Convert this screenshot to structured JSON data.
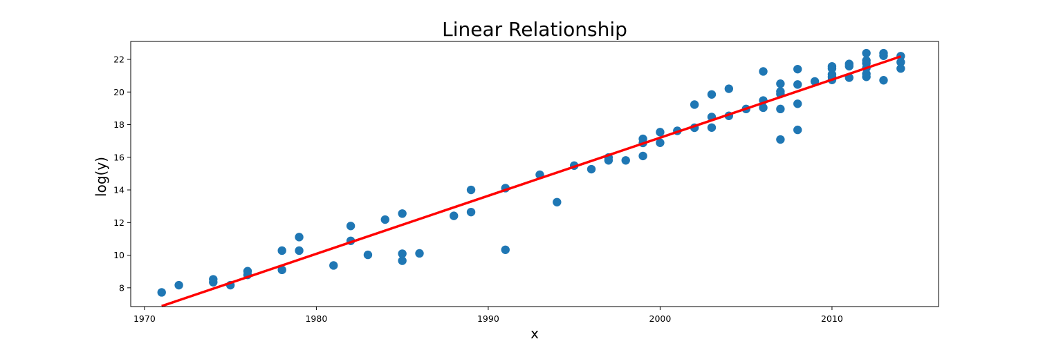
{
  "chart_data": {
    "type": "scatter",
    "title": "Linear Relationship",
    "xlabel": "x",
    "ylabel": "log(y)",
    "xlim": [
      1969.2,
      2016.2
    ],
    "ylim": [
      6.85,
      23.1
    ],
    "xticks": [
      1970,
      1980,
      1990,
      2000,
      2010
    ],
    "yticks": [
      8,
      10,
      12,
      14,
      16,
      18,
      20,
      22
    ],
    "grid": false,
    "colors": {
      "points": "#1f77b4",
      "fit_line": "#ff0000"
    },
    "series": [
      {
        "kind": "scatter",
        "points": [
          [
            1971,
            7.72
          ],
          [
            1972,
            8.16
          ],
          [
            1974,
            8.34
          ],
          [
            1974,
            8.52
          ],
          [
            1975,
            8.16
          ],
          [
            1976,
            8.79
          ],
          [
            1976,
            9.02
          ],
          [
            1978,
            9.1
          ],
          [
            1978,
            10.28
          ],
          [
            1979,
            10.28
          ],
          [
            1979,
            11.11
          ],
          [
            1981,
            9.37
          ],
          [
            1982,
            10.88
          ],
          [
            1982,
            11.79
          ],
          [
            1983,
            10.02
          ],
          [
            1984,
            12.18
          ],
          [
            1985,
            9.66
          ],
          [
            1985,
            10.09
          ],
          [
            1985,
            12.55
          ],
          [
            1986,
            10.11
          ],
          [
            1988,
            12.41
          ],
          [
            1989,
            12.64
          ],
          [
            1989,
            14.0
          ],
          [
            1991,
            10.33
          ],
          [
            1991,
            14.11
          ],
          [
            1993,
            14.93
          ],
          [
            1994,
            13.25
          ],
          [
            1995,
            15.49
          ],
          [
            1996,
            15.27
          ],
          [
            1997,
            15.81
          ],
          [
            1997,
            15.99
          ],
          [
            1998,
            15.81
          ],
          [
            1999,
            16.08
          ],
          [
            1999,
            16.88
          ],
          [
            1999,
            17.13
          ],
          [
            2000,
            16.89
          ],
          [
            2000,
            17.54
          ],
          [
            2001,
            17.62
          ],
          [
            2002,
            17.81
          ],
          [
            2002,
            19.23
          ],
          [
            2003,
            17.82
          ],
          [
            2003,
            18.47
          ],
          [
            2003,
            19.85
          ],
          [
            2004,
            18.54
          ],
          [
            2004,
            20.2
          ],
          [
            2005,
            18.96
          ],
          [
            2006,
            19.04
          ],
          [
            2006,
            19.48
          ],
          [
            2006,
            21.26
          ],
          [
            2007,
            17.09
          ],
          [
            2007,
            18.96
          ],
          [
            2007,
            19.88
          ],
          [
            2007,
            20.03
          ],
          [
            2007,
            20.51
          ],
          [
            2008,
            17.68
          ],
          [
            2008,
            19.28
          ],
          [
            2008,
            20.46
          ],
          [
            2008,
            21.4
          ],
          [
            2009,
            20.65
          ],
          [
            2010,
            20.74
          ],
          [
            2010,
            20.92
          ],
          [
            2010,
            21.08
          ],
          [
            2010,
            21.44
          ],
          [
            2010,
            21.57
          ],
          [
            2011,
            20.88
          ],
          [
            2011,
            21.58
          ],
          [
            2011,
            21.72
          ],
          [
            2012,
            20.93
          ],
          [
            2012,
            21.11
          ],
          [
            2012,
            21.47
          ],
          [
            2012,
            21.76
          ],
          [
            2012,
            21.93
          ],
          [
            2012,
            22.38
          ],
          [
            2013,
            20.72
          ],
          [
            2013,
            22.22
          ],
          [
            2013,
            22.38
          ],
          [
            2014,
            21.44
          ],
          [
            2014,
            21.83
          ],
          [
            2014,
            22.2
          ]
        ]
      },
      {
        "kind": "line",
        "points": [
          [
            1971,
            6.88
          ],
          [
            2014,
            22.18
          ]
        ]
      }
    ]
  }
}
